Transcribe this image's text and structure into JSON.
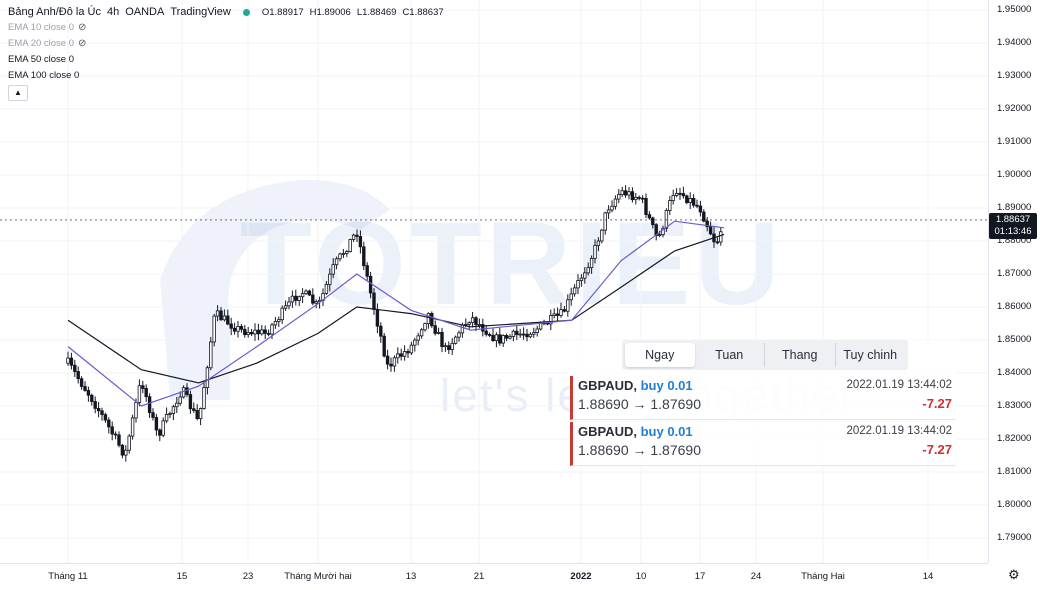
{
  "legend": {
    "symbol": "Bảng Anh/Đô la Úc",
    "interval": "4h",
    "broker": "OANDA",
    "source": "TradingView",
    "ohlc": {
      "o": "O1.88917",
      "h": "H1.89006",
      "l": "L1.88469",
      "c": "C1.88637"
    },
    "indicators": [
      {
        "label": "EMA 10 close 0",
        "hidden": true
      },
      {
        "label": "EMA 20 close 0",
        "hidden": true
      },
      {
        "label": "EMA 50 close 0",
        "hidden": false
      },
      {
        "label": "EMA 100 close 0",
        "hidden": false
      }
    ],
    "collapse_icon": "chevron-up-icon"
  },
  "price_axis": [
    "1.95000",
    "1.94000",
    "1.93000",
    "1.92000",
    "1.91000",
    "1.90000",
    "1.89000",
    "1.88000",
    "1.87000",
    "1.86000",
    "1.85000",
    "1.84000",
    "1.83000",
    "1.82000",
    "1.81000",
    "1.80000",
    "1.79000"
  ],
  "current_price": {
    "value": "1.88637",
    "countdown": "01:13:46"
  },
  "time_axis": [
    {
      "label": "Tháng 11",
      "bold": false
    },
    {
      "label": "15",
      "bold": false
    },
    {
      "label": "23",
      "bold": false
    },
    {
      "label": "Tháng Mười hai",
      "bold": false
    },
    {
      "label": "13",
      "bold": false
    },
    {
      "label": "21",
      "bold": false
    },
    {
      "label": "2022",
      "bold": true
    },
    {
      "label": "10",
      "bold": false
    },
    {
      "label": "17",
      "bold": false
    },
    {
      "label": "24",
      "bold": false
    },
    {
      "label": "Tháng Hai",
      "bold": false
    },
    {
      "label": "14",
      "bold": false
    }
  ],
  "watermark": {
    "title": "TOTRIEU",
    "subtitle": "let's learn together"
  },
  "panel": {
    "tabs": [
      {
        "label": "Ngay",
        "active": true
      },
      {
        "label": "Tuan",
        "active": false
      },
      {
        "label": "Thang",
        "active": false
      },
      {
        "label": "Tuy chinh",
        "active": false
      }
    ],
    "trades": [
      {
        "symbol": "GBPAUD,",
        "side": "buy 0.01",
        "date": "2022.01.19 13:44:02",
        "prices": "1.88690 → 1.87690",
        "profit": "-7.27"
      },
      {
        "symbol": "GBPAUD,",
        "side": "buy 0.01",
        "date": "2022.01.19 13:44:02",
        "prices": "1.88690 → 1.87690",
        "profit": "-7.27"
      }
    ]
  },
  "colors": {
    "up": "#ffffff",
    "down": "#131722",
    "ema50": "#6a5acd",
    "ema100": "#131722",
    "loss": "#d32f2f",
    "side": "#1e7fd8"
  },
  "chart_data": {
    "type": "candlestick",
    "symbol": "GBPAUD",
    "interval": "4h",
    "ylim": [
      1.785,
      1.955
    ],
    "x_range": [
      "2021-11-01",
      "2022-02-14"
    ],
    "price_path": [
      {
        "date": "2021-11-01",
        "close": 1.843
      },
      {
        "date": "2021-11-04",
        "close": 1.832
      },
      {
        "date": "2021-11-08",
        "close": 1.815
      },
      {
        "date": "2021-11-10",
        "close": 1.838
      },
      {
        "date": "2021-11-12",
        "close": 1.821
      },
      {
        "date": "2021-11-15",
        "close": 1.835
      },
      {
        "date": "2021-11-17",
        "close": 1.825
      },
      {
        "date": "2021-11-19",
        "close": 1.858
      },
      {
        "date": "2021-11-22",
        "close": 1.853
      },
      {
        "date": "2021-11-25",
        "close": 1.852
      },
      {
        "date": "2021-11-29",
        "close": 1.865
      },
      {
        "date": "2021-12-01",
        "close": 1.86
      },
      {
        "date": "2021-12-03",
        "close": 1.872
      },
      {
        "date": "2021-12-06",
        "close": 1.883
      },
      {
        "date": "2021-12-08",
        "close": 1.862
      },
      {
        "date": "2021-12-10",
        "close": 1.842
      },
      {
        "date": "2021-12-13",
        "close": 1.848
      },
      {
        "date": "2021-12-15",
        "close": 1.858
      },
      {
        "date": "2021-12-17",
        "close": 1.847
      },
      {
        "date": "2021-12-20",
        "close": 1.857
      },
      {
        "date": "2021-12-23",
        "close": 1.85
      },
      {
        "date": "2021-12-27",
        "close": 1.853
      },
      {
        "date": "2021-12-30",
        "close": 1.858
      },
      {
        "date": "2022-01-03",
        "close": 1.877
      },
      {
        "date": "2022-01-05",
        "close": 1.89
      },
      {
        "date": "2022-01-07",
        "close": 1.895
      },
      {
        "date": "2022-01-10",
        "close": 1.893
      },
      {
        "date": "2022-01-12",
        "close": 1.88
      },
      {
        "date": "2022-01-14",
        "close": 1.896
      },
      {
        "date": "2022-01-17",
        "close": 1.89
      },
      {
        "date": "2022-01-19",
        "close": 1.879
      },
      {
        "date": "2022-01-20",
        "close": 1.886
      }
    ],
    "ema50": [
      {
        "date": "2021-11-01",
        "value": 1.848
      },
      {
        "date": "2021-11-10",
        "value": 1.83
      },
      {
        "date": "2021-11-17",
        "value": 1.836
      },
      {
        "date": "2021-11-24",
        "value": 1.848
      },
      {
        "date": "2021-12-01",
        "value": 1.861
      },
      {
        "date": "2021-12-06",
        "value": 1.87
      },
      {
        "date": "2021-12-13",
        "value": 1.859
      },
      {
        "date": "2021-12-20",
        "value": 1.853
      },
      {
        "date": "2021-12-31",
        "value": 1.856
      },
      {
        "date": "2022-01-07",
        "value": 1.874
      },
      {
        "date": "2022-01-14",
        "value": 1.886
      },
      {
        "date": "2022-01-20",
        "value": 1.884
      }
    ],
    "ema100": [
      {
        "date": "2021-11-01",
        "value": 1.856
      },
      {
        "date": "2021-11-10",
        "value": 1.841
      },
      {
        "date": "2021-11-17",
        "value": 1.837
      },
      {
        "date": "2021-11-24",
        "value": 1.843
      },
      {
        "date": "2021-12-01",
        "value": 1.852
      },
      {
        "date": "2021-12-06",
        "value": 1.86
      },
      {
        "date": "2021-12-13",
        "value": 1.858
      },
      {
        "date": "2021-12-20",
        "value": 1.854
      },
      {
        "date": "2021-12-31",
        "value": 1.856
      },
      {
        "date": "2022-01-07",
        "value": 1.866
      },
      {
        "date": "2022-01-14",
        "value": 1.877
      },
      {
        "date": "2022-01-20",
        "value": 1.882
      }
    ]
  }
}
